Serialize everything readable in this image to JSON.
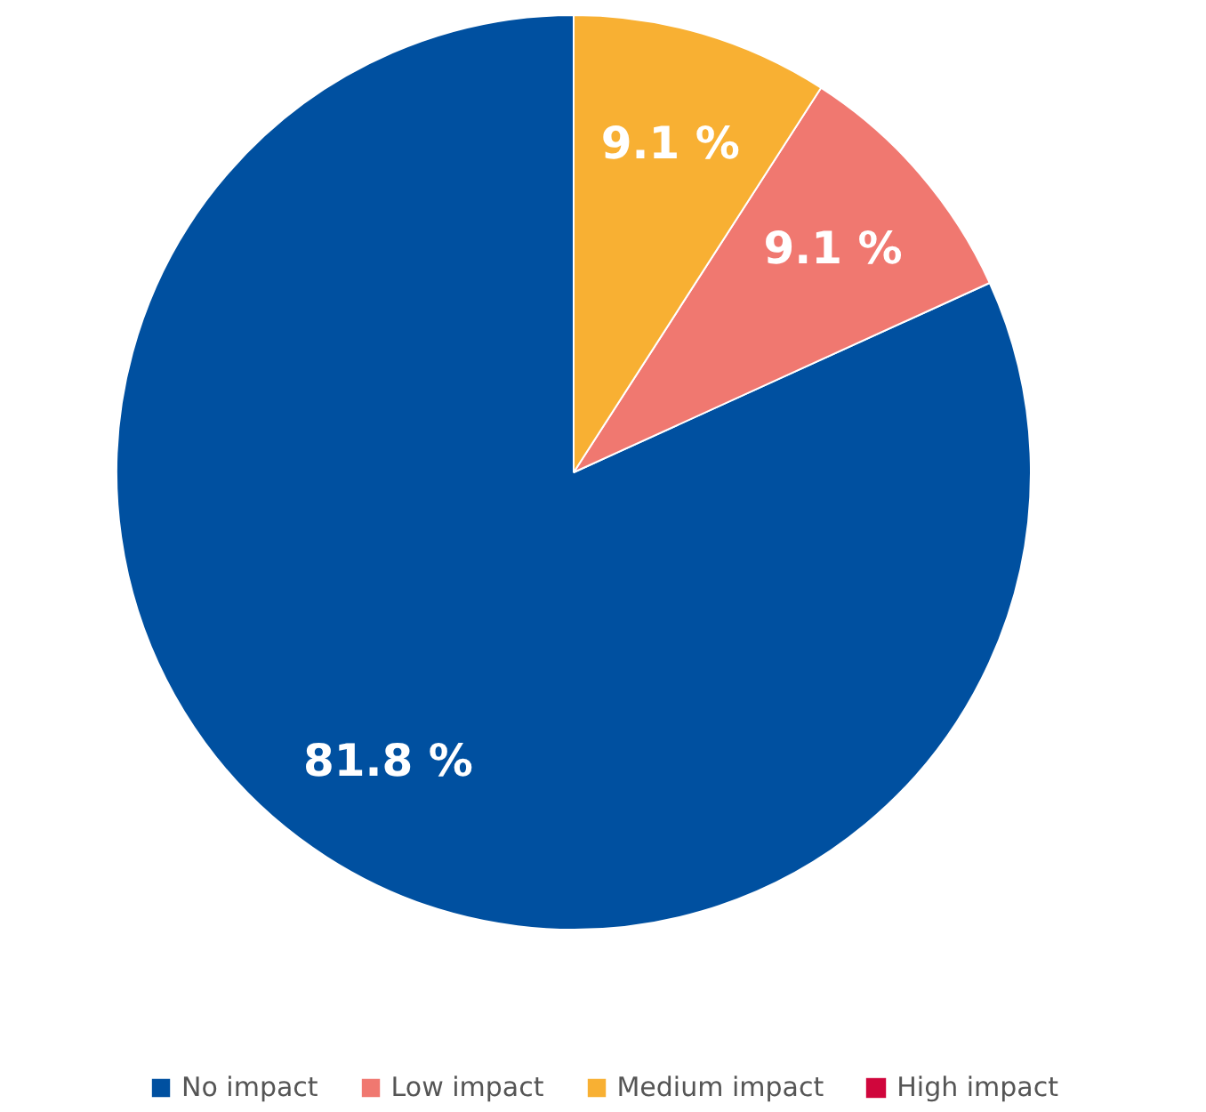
{
  "chart_data": {
    "type": "pie",
    "categories": [
      "No impact",
      "Low impact",
      "Medium impact",
      "High impact"
    ],
    "values": [
      81.8,
      9.1,
      9.1,
      0
    ],
    "colors": [
      "#0050a0",
      "#f07870",
      "#f8b033",
      "#d0063c"
    ],
    "value_labels": [
      "81.8 %",
      "9.1 %",
      "9.1 %",
      null
    ],
    "legend": "bottom"
  }
}
